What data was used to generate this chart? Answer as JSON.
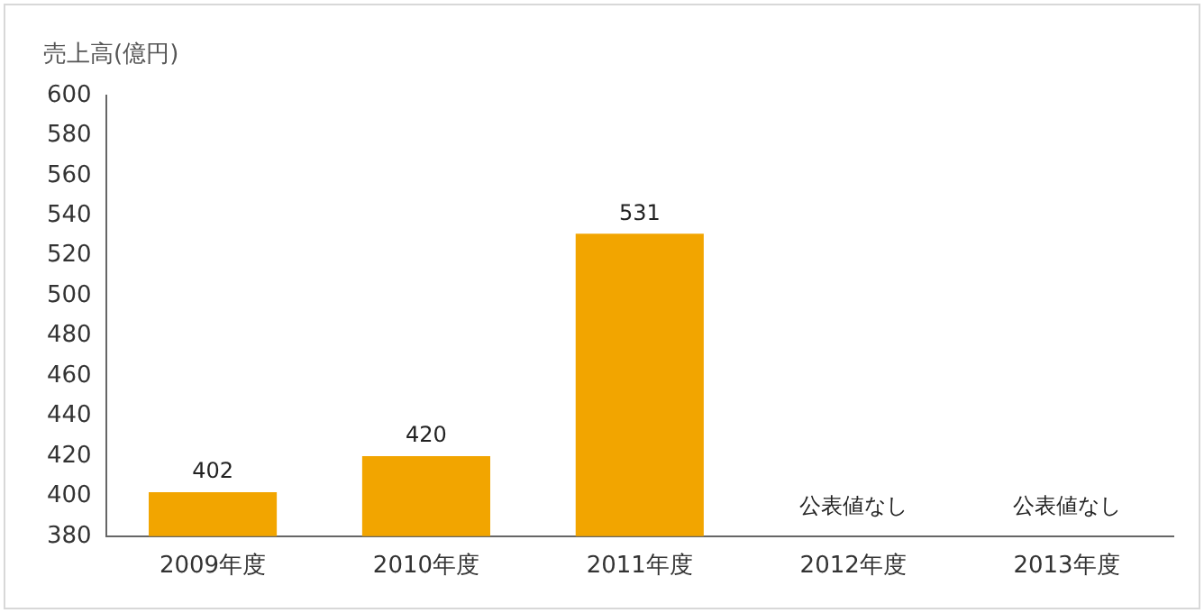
{
  "chart_data": {
    "type": "bar",
    "ylabel": "売上高(億円)",
    "categories": [
      "2009年度",
      "2010年度",
      "2011年度",
      "2012年度",
      "2013年度"
    ],
    "values": [
      402,
      420,
      531,
      null,
      null
    ],
    "value_labels": [
      "402",
      "420",
      "531",
      "公表値なし",
      "公表値なし"
    ],
    "color": "#f2a500",
    "ylim": [
      380,
      600
    ],
    "yticks": [
      380,
      400,
      420,
      440,
      460,
      480,
      500,
      520,
      540,
      560,
      580,
      600
    ],
    "grid": false,
    "legend": false
  }
}
